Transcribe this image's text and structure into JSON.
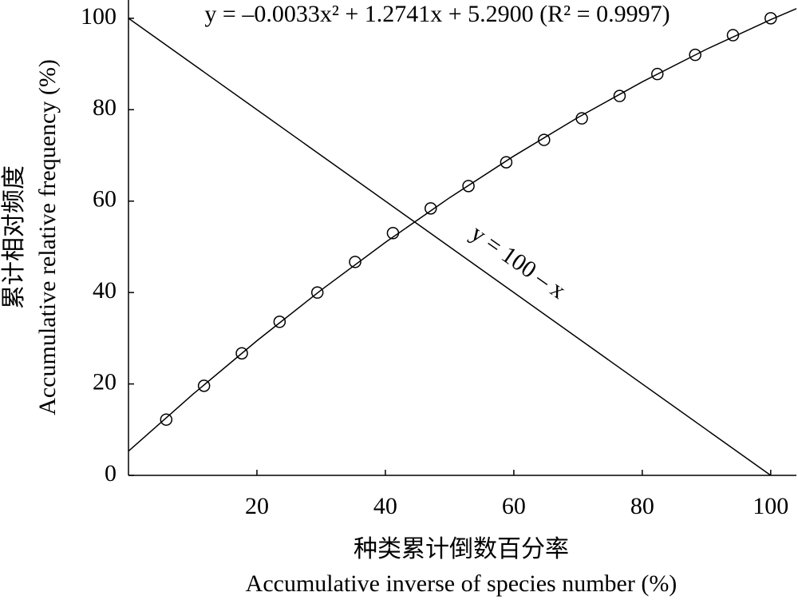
{
  "chart_data": {
    "type": "scatter",
    "equation": "y = –0.0033x² + 1.2741x + 5.2900 (R² = 0.9997)",
    "line_label": "y = 100 – x",
    "x_label": [
      "种类累计倒数百分率",
      "Accumulative inverse of species number (%)"
    ],
    "y_label": [
      "累计相对频度",
      "Accumulative relative frequency (%)"
    ],
    "x": [
      5.88,
      11.76,
      17.65,
      23.53,
      29.41,
      35.29,
      41.18,
      47.06,
      52.94,
      58.82,
      64.71,
      70.59,
      76.47,
      82.35,
      88.24,
      94.12,
      100
    ],
    "values": [
      12.2,
      19.6,
      26.7,
      33.6,
      40.0,
      46.7,
      53.0,
      58.4,
      63.3,
      68.5,
      73.4,
      78.1,
      83.0,
      87.8,
      92.0,
      96.3,
      100
    ],
    "color": "#000000",
    "lines": [
      {
        "x": [
          0,
          10,
          20,
          30,
          40,
          50,
          60,
          70,
          80,
          90,
          100,
          104
        ],
        "values": [
          5.29,
          17.7,
          29.45,
          40.54,
          50.97,
          60.75,
          69.86,
          78.31,
          86.1,
          93.23,
          99.7,
          102.1
        ]
      },
      {
        "x": [
          0,
          100
        ],
        "values": [
          100,
          0
        ]
      }
    ],
    "xlim": [
      0,
      104
    ],
    "ylim": [
      0,
      104
    ],
    "xticks": [
      20,
      40,
      60,
      80,
      100
    ],
    "yticks": [
      0,
      20,
      40,
      60,
      80,
      100
    ]
  }
}
